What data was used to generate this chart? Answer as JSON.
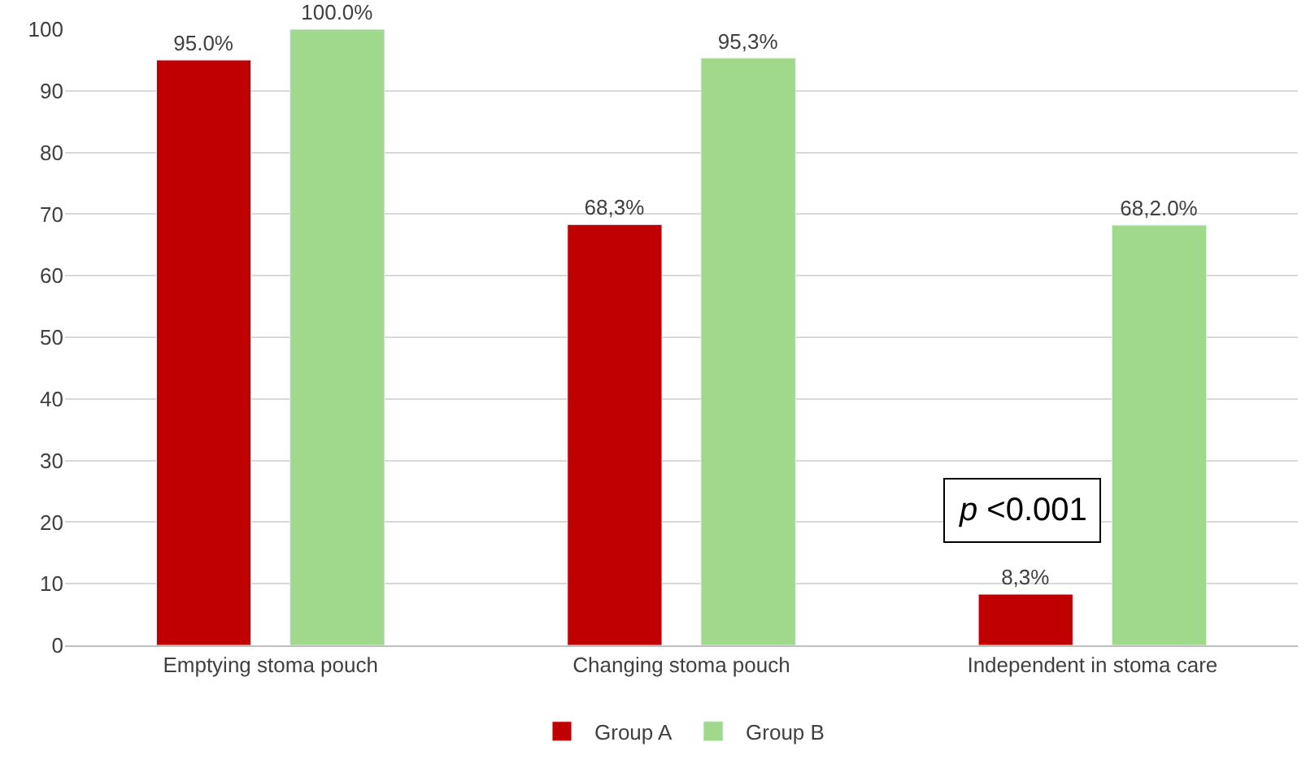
{
  "chart_data": {
    "type": "bar",
    "categories": [
      "Emptying stoma pouch",
      "Changing stoma pouch",
      "Independent in stoma care"
    ],
    "series": [
      {
        "name": "Group A",
        "color": "#c00000",
        "values": [
          95.0,
          68.3,
          8.3
        ],
        "value_labels": [
          "95.0%",
          "68,3%",
          "8,3%"
        ]
      },
      {
        "name": "Group B",
        "color": "#a0d88c",
        "values": [
          100.0,
          95.3,
          68.2
        ],
        "value_labels": [
          "100.0%",
          "95,3%",
          "68,2.0%"
        ]
      }
    ],
    "ylim": [
      0,
      100
    ],
    "yticks": [
      0,
      10,
      20,
      30,
      40,
      50,
      60,
      70,
      80,
      90,
      100
    ],
    "grid": "y",
    "legend": "bottom",
    "annotations": [
      "p <0.001"
    ]
  }
}
